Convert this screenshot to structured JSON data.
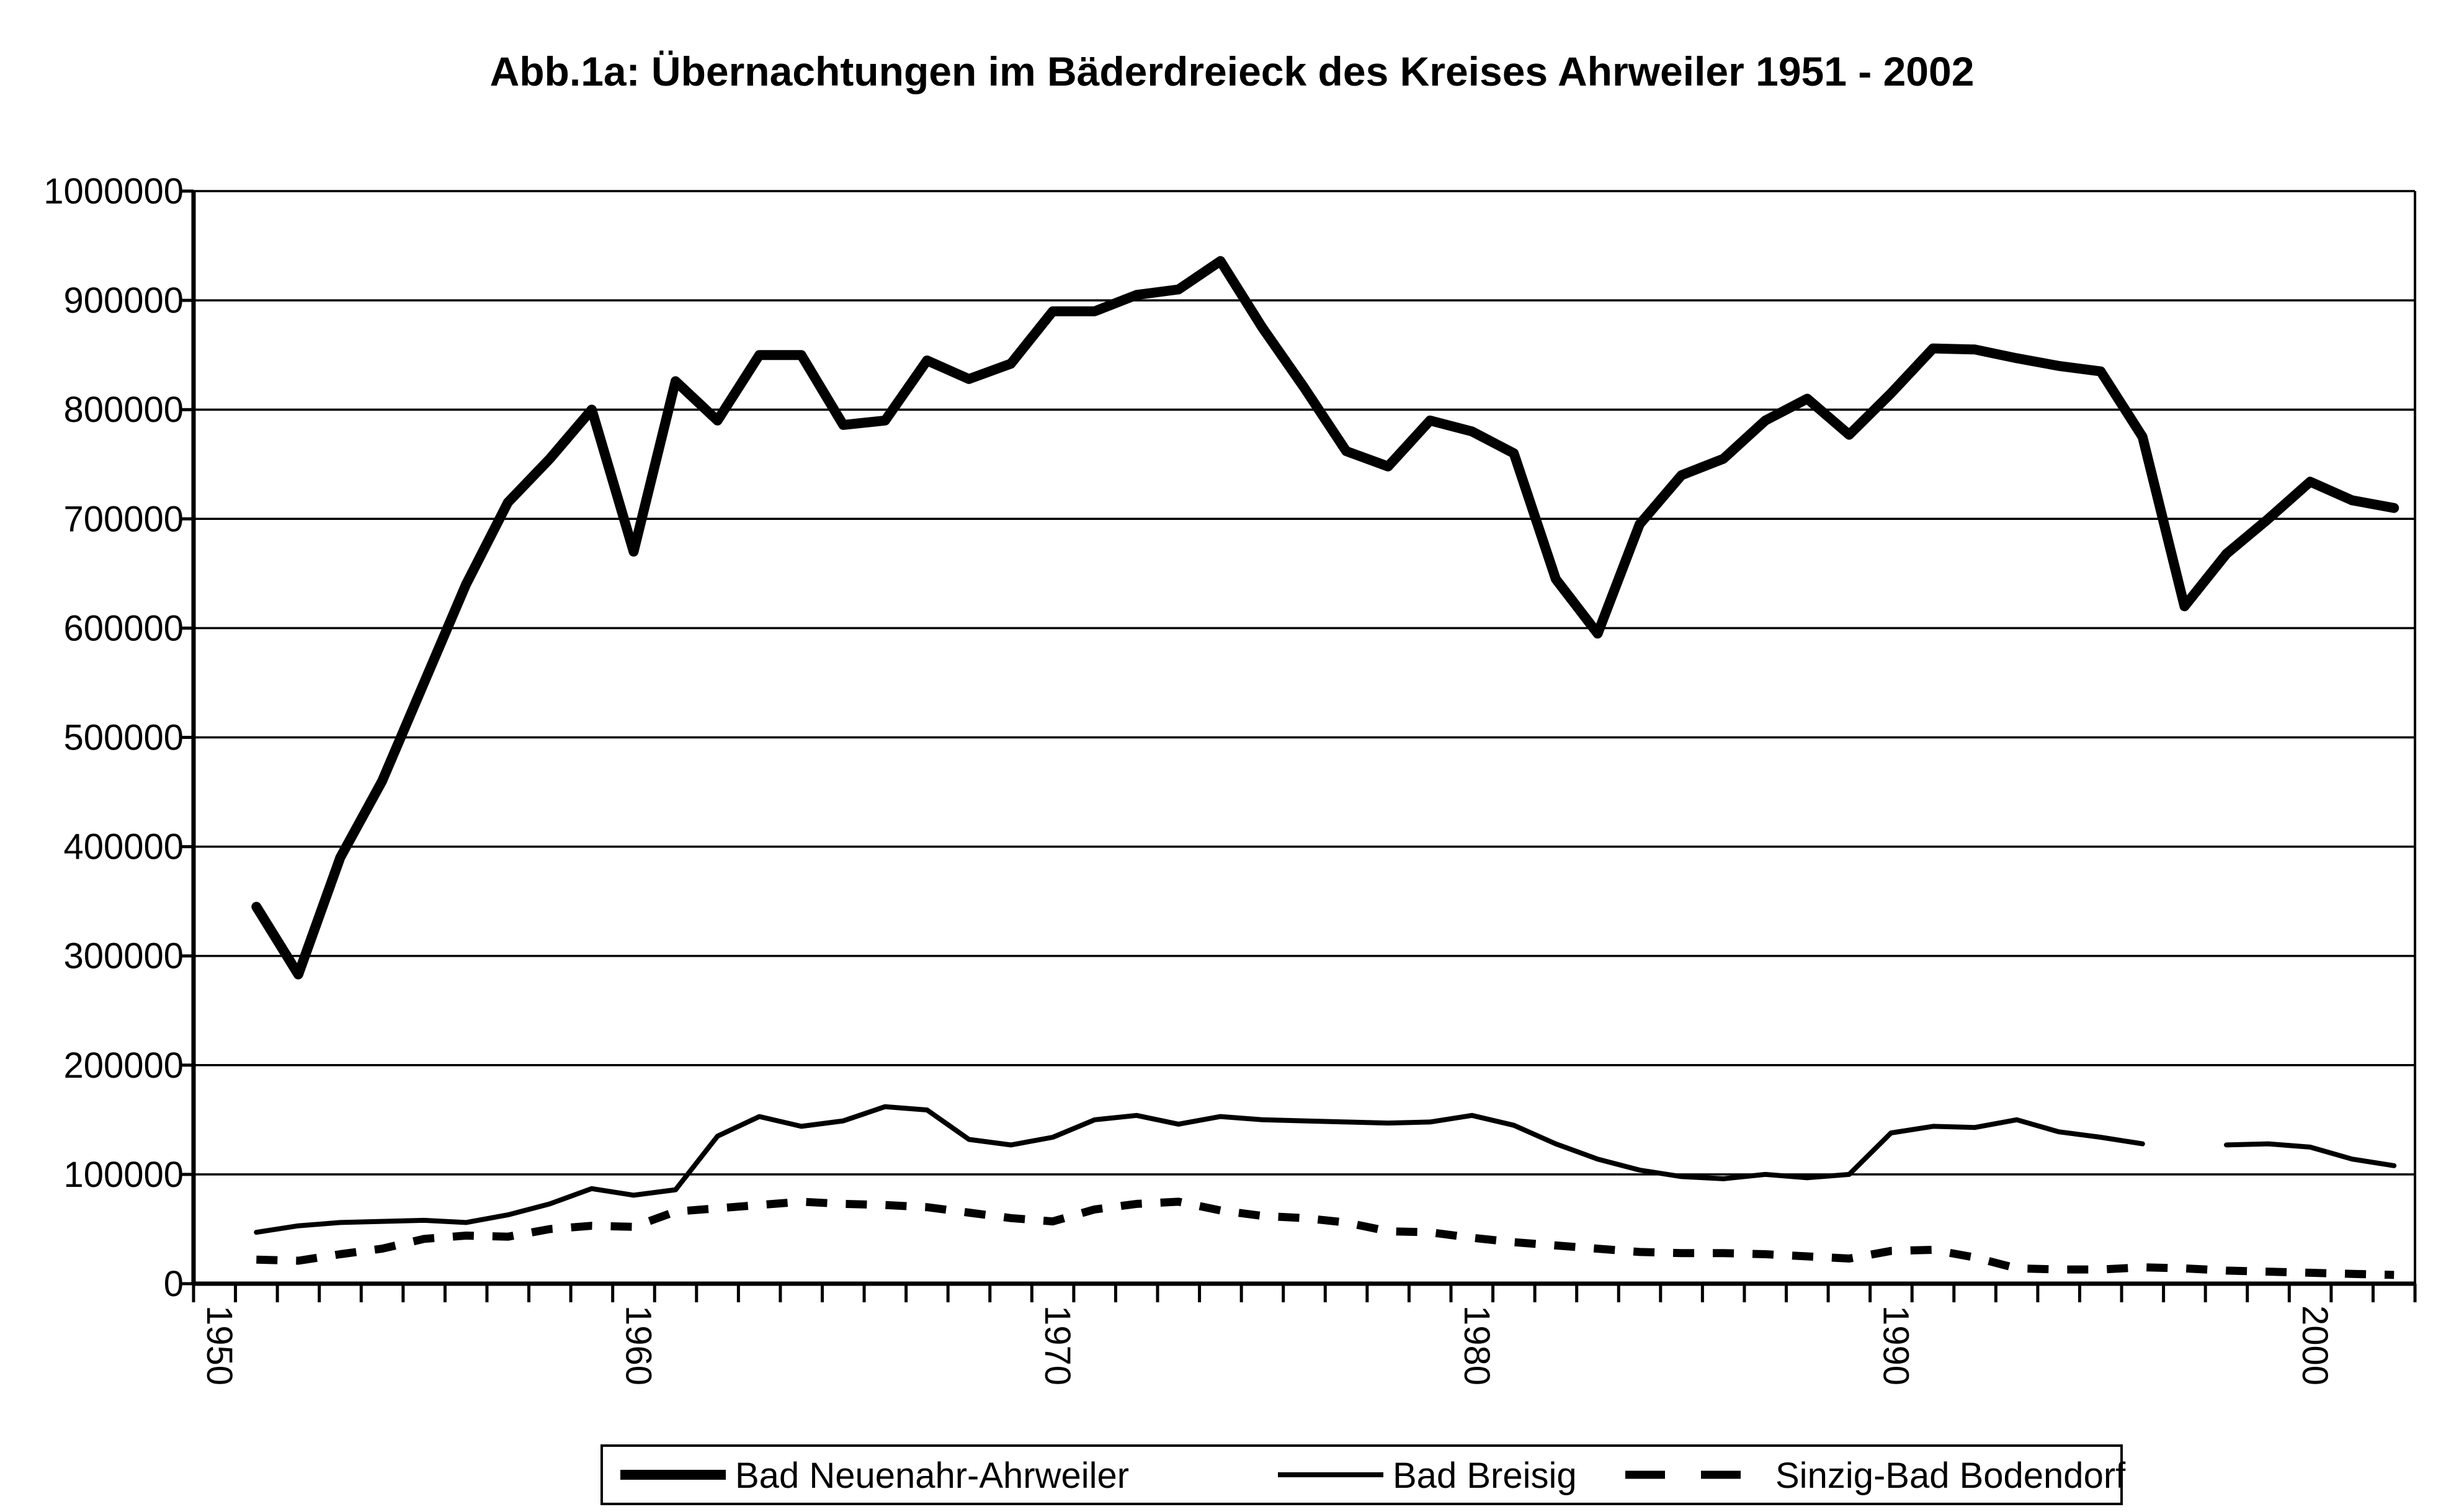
{
  "title": "Abb.1a: Übernachtungen im Bäderdreieck des Kreises Ahrweiler 1951 - 2002",
  "chart_data": {
    "type": "line",
    "title": "Abb.1a: Übernachtungen im Bäderdreieck des Kreises Ahrweiler 1951 - 2002",
    "xlabel": "",
    "ylabel": "",
    "ylim": [
      0,
      1000000
    ],
    "yticks": [
      0,
      100000,
      200000,
      300000,
      400000,
      500000,
      600000,
      700000,
      800000,
      900000,
      1000000
    ],
    "ytick_labels": [
      "0",
      "100000",
      "200000",
      "300000",
      "400000",
      "500000",
      "600000",
      "700000",
      "800000",
      "900000",
      "1000000"
    ],
    "xtick_years": [
      1950,
      1960,
      1970,
      1980,
      1990,
      2000
    ],
    "xtick_labels": [
      "1950",
      "1960",
      "1970",
      "1980",
      "1990",
      "2000"
    ],
    "x_axis_span": [
      1950,
      2002
    ],
    "grid": "horizontal",
    "legend_position": "bottom",
    "colors": {
      "line": "#000000",
      "background": "#ffffff"
    },
    "x": [
      1951,
      1952,
      1953,
      1954,
      1955,
      1956,
      1957,
      1958,
      1959,
      1960,
      1961,
      1962,
      1963,
      1964,
      1965,
      1966,
      1967,
      1968,
      1969,
      1970,
      1971,
      1972,
      1973,
      1974,
      1975,
      1976,
      1977,
      1978,
      1979,
      1980,
      1981,
      1982,
      1983,
      1984,
      1985,
      1986,
      1987,
      1988,
      1989,
      1990,
      1991,
      1992,
      1993,
      1994,
      1995,
      1996,
      1997,
      1998,
      1999,
      2000,
      2001,
      2002
    ],
    "series": [
      {
        "name": "Bad Neuenahr-Ahrweiler",
        "style": "solid-thick",
        "values": [
          345000,
          283000,
          390000,
          460000,
          550000,
          640000,
          715000,
          755000,
          800000,
          670000,
          826000,
          790000,
          850000,
          850000,
          786000,
          790000,
          845000,
          828000,
          842000,
          890000,
          890000,
          905000,
          910000,
          936000,
          875000,
          820000,
          762000,
          748000,
          790000,
          780000,
          760000,
          645000,
          595000,
          695000,
          740000,
          755000,
          790000,
          810000,
          777000,
          815000,
          856000,
          855000,
          847000,
          840000,
          835000,
          775000,
          620000,
          668000,
          700000,
          734000,
          717000,
          710000
        ]
      },
      {
        "name": "Bad Breisig",
        "style": "solid-thin",
        "values": [
          47000,
          53000,
          56000,
          57000,
          58000,
          56000,
          63000,
          73000,
          87000,
          81000,
          86000,
          135000,
          153000,
          144000,
          149000,
          162000,
          159000,
          132000,
          127000,
          134000,
          150000,
          154000,
          146000,
          153000,
          150000,
          149000,
          148000,
          147000,
          148000,
          154000,
          145000,
          128000,
          114000,
          104000,
          98000,
          96000,
          100000,
          97000,
          100000,
          138000,
          144000,
          143000,
          150000,
          139000,
          134000,
          128000,
          null,
          127000,
          128000,
          125000,
          114000,
          108000
        ]
      },
      {
        "name": "Sinzig-Bad Bodendorf",
        "style": "dashed",
        "values": [
          22000,
          21000,
          27000,
          32000,
          41000,
          44000,
          43000,
          50000,
          53000,
          52000,
          66000,
          69000,
          72000,
          75000,
          73000,
          72000,
          70000,
          65000,
          60000,
          57000,
          68000,
          73000,
          75000,
          67000,
          62000,
          60000,
          56000,
          48000,
          47000,
          42000,
          38000,
          35000,
          32000,
          29000,
          28000,
          28000,
          27000,
          25000,
          23000,
          30000,
          31000,
          24000,
          14000,
          13000,
          13000,
          15000,
          14000,
          12000,
          11000,
          10000,
          9000,
          8000
        ]
      }
    ]
  },
  "legend": {
    "items": [
      {
        "label": "Bad Neuenahr-Ahrweiler",
        "sample": "thick-solid-line"
      },
      {
        "label": "Bad Breisig",
        "sample": "thin-solid-line"
      },
      {
        "label": "Sinzig-Bad Bodendorf",
        "sample": "dashed-line"
      }
    ]
  }
}
